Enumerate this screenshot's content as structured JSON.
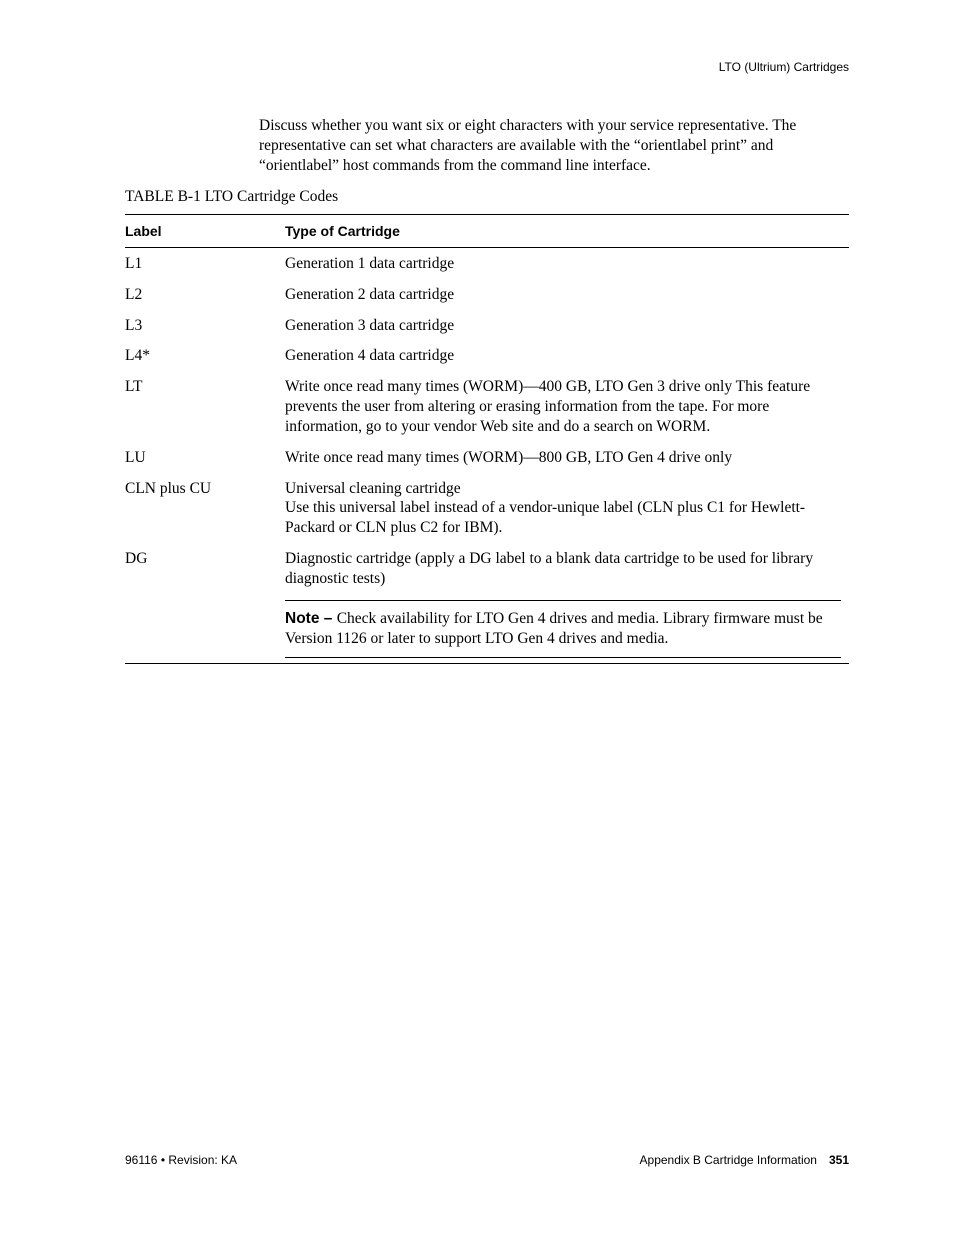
{
  "header": {
    "section": "LTO (Ultrium) Cartridges"
  },
  "intro": "Discuss whether you want six or eight characters with your service representative. The representative can set what characters are available with the “orientlabel print” and “orientlabel” host commands from the command line interface.",
  "table": {
    "caption": "TABLE B-1 LTO Cartridge Codes",
    "columns": [
      "Label",
      "Type of Cartridge"
    ],
    "rows": [
      {
        "label": "L1",
        "type": "Generation 1 data cartridge"
      },
      {
        "label": "L2",
        "type": "Generation 2 data cartridge"
      },
      {
        "label": "L3",
        "type": "Generation 3 data cartridge"
      },
      {
        "label": "L4*",
        "type": "Generation 4 data cartridge"
      },
      {
        "label": "LT",
        "type": "Write once read many times (WORM)—400 GB, LTO Gen 3 drive only This feature prevents the user from altering or erasing information from the tape. For more information, go to your vendor Web site and do a search on WORM."
      },
      {
        "label": "LU",
        "type": "Write once read many times (WORM)—800 GB, LTO Gen 4 drive only"
      },
      {
        "label": "CLN plus CU",
        "type": "Universal cleaning cartridge\nUse this universal label instead of a vendor-unique label (CLN plus C1 for Hewlett-Packard or CLN plus C2 for IBM)."
      },
      {
        "label": "DG",
        "type": "Diagnostic cartridge (apply a DG label to a blank data cartridge to be used for library diagnostic tests)"
      }
    ],
    "note_label": "Note – ",
    "note_text": "Check availability for LTO Gen 4 drives and media. Library firmware must be Version 1126 or later to support LTO Gen 4 drives and media."
  },
  "footer": {
    "left": "96116 • Revision: KA",
    "right_text": "Appendix B Cartridge Information",
    "page_number": "351"
  }
}
